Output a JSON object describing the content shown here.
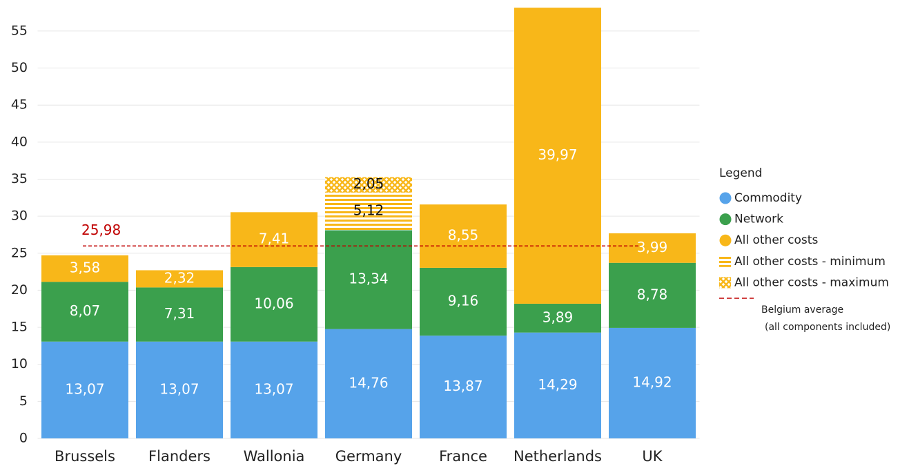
{
  "chart_data": {
    "type": "stacked-bar",
    "categories": [
      "Brussels",
      "Flanders",
      "Wallonia",
      "Germany",
      "France",
      "Netherlands",
      "UK"
    ],
    "series": [
      {
        "name": "Commodity",
        "color": "#56a3ea",
        "pattern": "solid",
        "values": [
          13.07,
          13.07,
          13.07,
          14.76,
          13.87,
          14.29,
          14.92
        ],
        "value_labels": [
          "13,07",
          "13,07",
          "13,07",
          "14,76",
          "13,87",
          "14,29",
          "14,92"
        ]
      },
      {
        "name": "Network",
        "color": "#3ba04d",
        "pattern": "solid",
        "values": [
          8.07,
          7.31,
          10.06,
          13.34,
          9.16,
          3.89,
          8.78
        ],
        "value_labels": [
          "8,07",
          "7,31",
          "10,06",
          "13,34",
          "9,16",
          "3,89",
          "8,78"
        ]
      },
      {
        "name": "All other costs",
        "color": "#f8b719",
        "pattern": "solid",
        "values": [
          3.58,
          2.32,
          7.41,
          null,
          8.55,
          39.97,
          3.99
        ],
        "value_labels": [
          "3,58",
          "2,32",
          "7,41",
          null,
          "8,55",
          "39,97",
          "3,99"
        ]
      },
      {
        "name": "All other costs - minimum",
        "color": "#f8b719",
        "pattern": "horizontal-lines",
        "values": [
          null,
          null,
          null,
          5.12,
          null,
          null,
          null
        ],
        "value_labels": [
          null,
          null,
          null,
          "5,12",
          null,
          null,
          null
        ]
      },
      {
        "name": "All other costs - maximum",
        "color": "#f8b719",
        "pattern": "crosshatch",
        "values": [
          null,
          null,
          null,
          2.05,
          null,
          null,
          null
        ],
        "value_labels": [
          null,
          null,
          null,
          "2,05",
          null,
          null,
          null
        ]
      }
    ],
    "reference_line": {
      "value": 25.98,
      "value_label": "25,98",
      "color": "#c00000",
      "label": [
        "Belgium average",
        "(all components included)"
      ]
    },
    "legend_title": "Legend",
    "legend": "right",
    "ylim": [
      0,
      59
    ],
    "yticks": [
      0,
      5,
      10,
      15,
      20,
      25,
      30,
      35,
      40,
      45,
      50,
      55
    ],
    "grid": true
  }
}
